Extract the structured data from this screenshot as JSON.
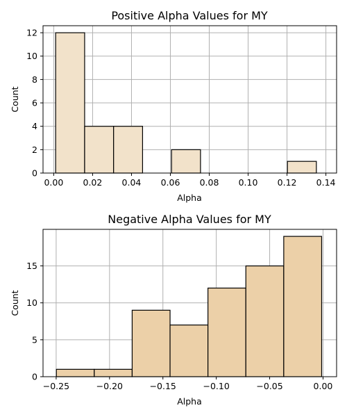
{
  "chart_data": [
    {
      "type": "bar",
      "title": "Positive Alpha Values for MY",
      "xlabel": "Alpha",
      "ylabel": "Count",
      "xlim": [
        -0.0055,
        0.1455
      ],
      "ylim": [
        0,
        12.6
      ],
      "xticks": [
        0.0,
        0.02,
        0.04,
        0.06,
        0.08,
        0.1,
        0.12,
        0.14
      ],
      "xtick_labels": [
        "0.00",
        "0.02",
        "0.04",
        "0.06",
        "0.08",
        "0.10",
        "0.12",
        "0.14"
      ],
      "yticks": [
        0,
        2,
        4,
        6,
        8,
        10,
        12
      ],
      "ytick_labels": [
        "0",
        "2",
        "4",
        "6",
        "8",
        "10",
        "12"
      ],
      "grid": true,
      "bar_color": "#f2e2ca",
      "bins": [
        {
          "start": 0.001,
          "end": 0.0159,
          "count": 12
        },
        {
          "start": 0.0159,
          "end": 0.0308,
          "count": 4
        },
        {
          "start": 0.0308,
          "end": 0.0457,
          "count": 4
        },
        {
          "start": 0.0457,
          "end": 0.0606,
          "count": 0
        },
        {
          "start": 0.0606,
          "end": 0.0755,
          "count": 2
        },
        {
          "start": 0.0755,
          "end": 0.0904,
          "count": 0
        },
        {
          "start": 0.0904,
          "end": 0.1053,
          "count": 0
        },
        {
          "start": 0.1053,
          "end": 0.1202,
          "count": 0
        },
        {
          "start": 0.1202,
          "end": 0.1351,
          "count": 1
        }
      ]
    },
    {
      "type": "bar",
      "title": "Negative Alpha Values for MY",
      "xlabel": "Alpha",
      "ylabel": "Count",
      "xlim": [
        -0.2623,
        0.0127
      ],
      "ylim": [
        0,
        19.95
      ],
      "xticks": [
        -0.25,
        -0.2,
        -0.15,
        -0.1,
        -0.05,
        0.0
      ],
      "xtick_labels": [
        "−0.25",
        "−0.20",
        "−0.15",
        "−0.10",
        "−0.05",
        "0.00"
      ],
      "yticks": [
        0,
        5,
        10,
        15
      ],
      "ytick_labels": [
        "0",
        "5",
        "10",
        "15"
      ],
      "grid": true,
      "bar_color": "#ecd0a8",
      "bins": [
        {
          "start": -0.2498,
          "end": -0.2143,
          "count": 1
        },
        {
          "start": -0.2143,
          "end": -0.1788,
          "count": 1
        },
        {
          "start": -0.1788,
          "end": -0.1433,
          "count": 9
        },
        {
          "start": -0.1433,
          "end": -0.1078,
          "count": 7
        },
        {
          "start": -0.1078,
          "end": -0.0723,
          "count": 12
        },
        {
          "start": -0.0723,
          "end": -0.0368,
          "count": 15
        },
        {
          "start": -0.0368,
          "end": -0.0013,
          "count": 19
        }
      ]
    }
  ]
}
